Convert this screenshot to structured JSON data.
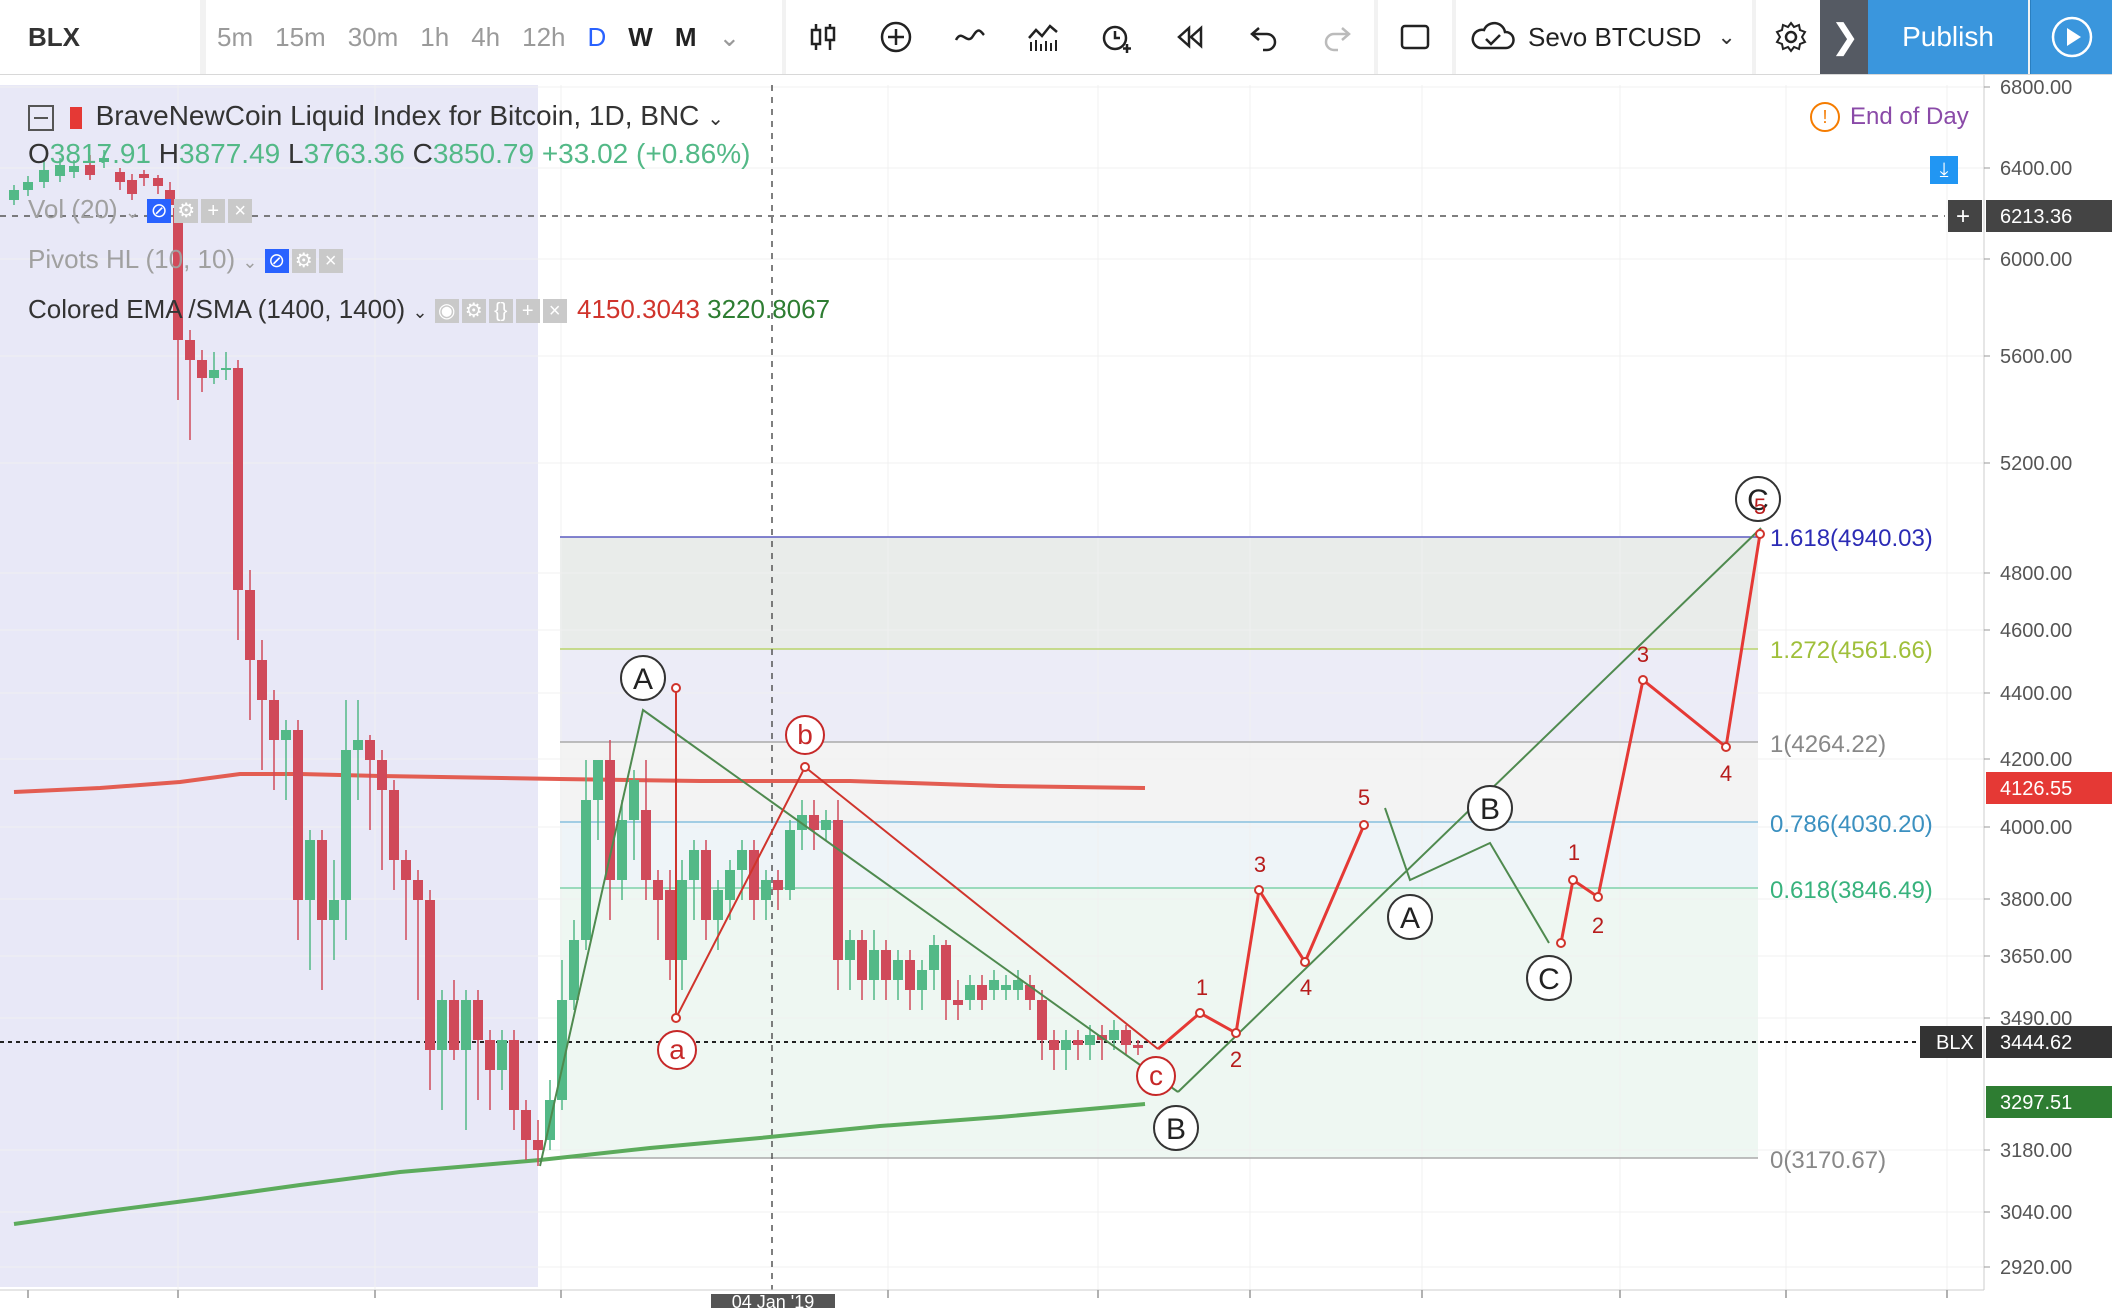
{
  "toolbar": {
    "symbol": "BLX",
    "intervals": [
      "5m",
      "15m",
      "30m",
      "1h",
      "4h",
      "12h",
      "D",
      "W",
      "M"
    ],
    "active_interval": "D",
    "tools": [
      "bar-type-icon",
      "add-indicator-icon",
      "line-type-icon",
      "indicators-icon",
      "alert-icon",
      "replay-icon",
      "undo-icon",
      "redo-icon"
    ],
    "compare_label": "Sevo BTCUSD",
    "publish_label": "Publish"
  },
  "legend": {
    "title": "BraveNewCoin Liquid Index for Bitcoin, 1D, BNC",
    "o_label": "O",
    "o_value": "3817.91",
    "h_label": "H",
    "h_value": "3877.49",
    "l_label": "L",
    "l_value": "3763.36",
    "c_label": "C",
    "c_value": "3850.79",
    "change": "+33.02 (+0.86%)",
    "vol": "Vol (20)",
    "pivots": "Pivots HL (10, 10)",
    "ema": "Colored EMA /SMA (1400, 1400)",
    "ema_value1": "4150.3043",
    "ema_value2": "3220.8067",
    "eod": "End of Day"
  },
  "price_axis": {
    "labels": [
      "6800.00",
      "6400.00",
      "6000.00",
      "5600.00",
      "5200.00",
      "4800.00",
      "4600.00",
      "4400.00",
      "4200.00",
      "4000.00",
      "3800.00",
      "3650.00",
      "3490.00",
      "3180.00",
      "3040.00",
      "2920.00"
    ],
    "badges": [
      {
        "text": "6213.36",
        "color": "#444444",
        "price": 6213.36
      },
      {
        "text": "4126.55",
        "color": "#e53935",
        "price": 4126.55
      },
      {
        "text": "3444.62",
        "color": "#333333",
        "price": 3444.62,
        "tag": "BLX"
      },
      {
        "text": "3297.51",
        "color": "#2e7d32",
        "price": 3297.51
      }
    ]
  },
  "fib_levels": [
    {
      "label": "1.618(4940.03)",
      "color": "#2b2bb5",
      "price": 4940.03
    },
    {
      "label": "1.272(4561.66)",
      "color": "#9fbf3a",
      "price": 4561.66
    },
    {
      "label": "1(4264.22)",
      "color": "#888888",
      "price": 4264.22
    },
    {
      "label": "0.786(4030.20)",
      "color": "#5aa3c8",
      "price": 4030.2
    },
    {
      "label": "0.618(3846.49)",
      "color": "#4cba8a",
      "price": 3846.49
    },
    {
      "label": "0(3170.67)",
      "color": "#888888",
      "price": 3170.67
    }
  ],
  "time_axis": {
    "crosshair_label": "04 Jan '19"
  },
  "waves": {
    "green_major": [
      "A",
      "B",
      "A",
      "B",
      "C",
      "C"
    ],
    "red_minor": [
      "a",
      "b",
      "c"
    ],
    "red_impulse": [
      "1",
      "2",
      "3",
      "4",
      "5",
      "1",
      "2",
      "3",
      "4",
      "5"
    ]
  },
  "colors": {
    "up": "#53b987",
    "down": "#d04a5a",
    "accent": "#3a96dd",
    "ema_red": "#e35d52",
    "sma_green": "#5cab5c"
  }
}
